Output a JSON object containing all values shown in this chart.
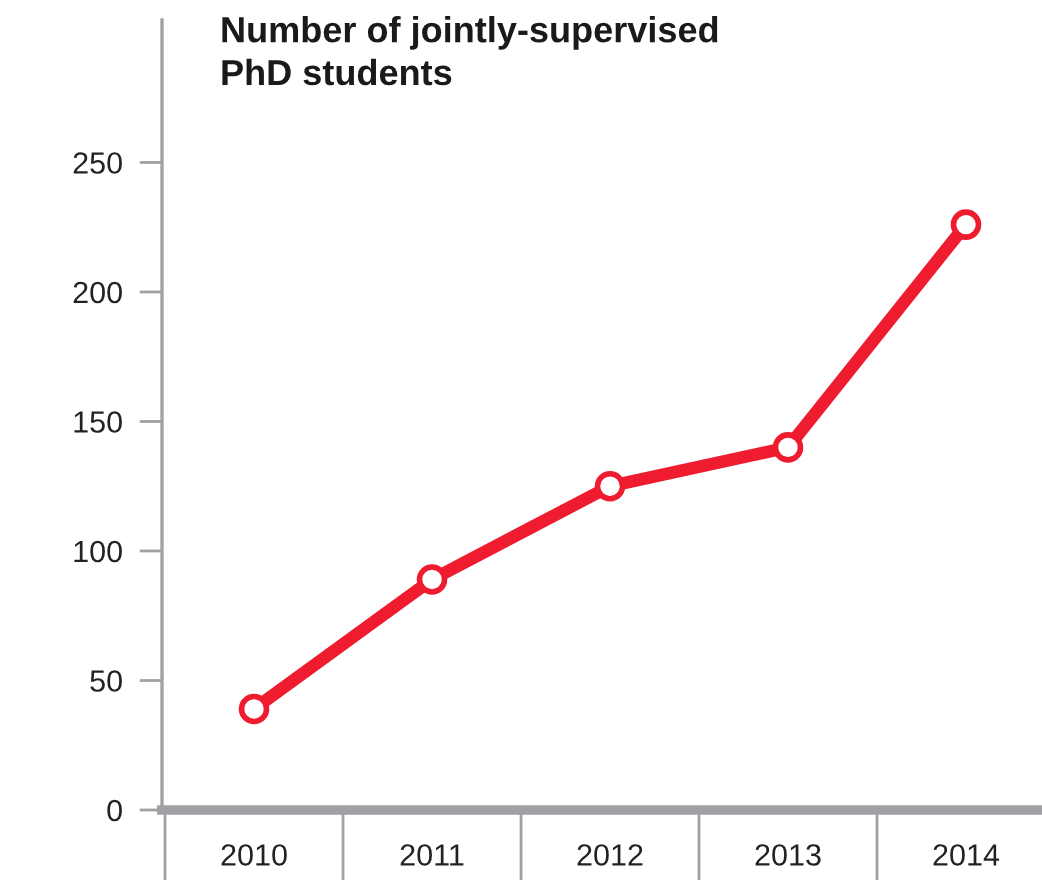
{
  "chart_data": {
    "type": "line",
    "title": "Number of jointly-supervised\nPhD students",
    "categories": [
      "2010",
      "2011",
      "2012",
      "2013",
      "2014"
    ],
    "series": [
      {
        "color": "#ee1c2e",
        "values": [
          39,
          89,
          125,
          140,
          226
        ]
      }
    ],
    "ylim": [
      0,
      305
    ],
    "yticks": [
      0,
      50,
      100,
      150,
      200,
      250
    ],
    "marker": "circle",
    "line_style": "solid",
    "grid": false
  }
}
